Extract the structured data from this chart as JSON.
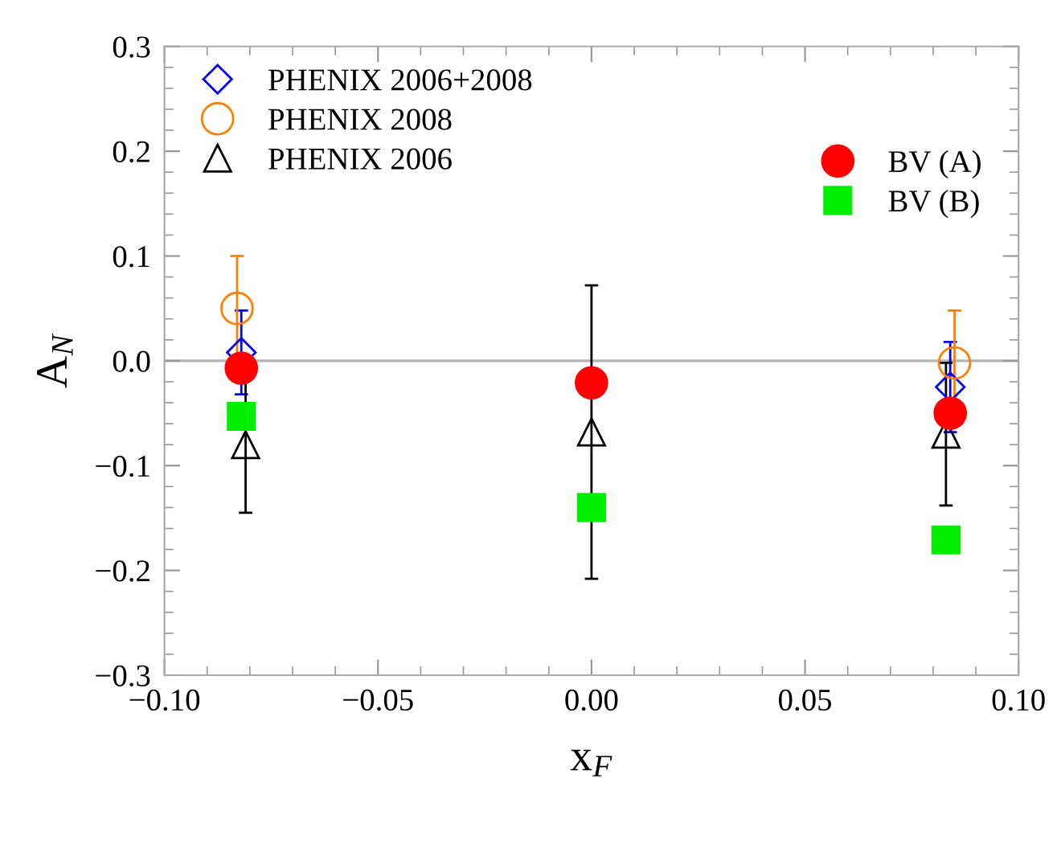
{
  "chart_data": {
    "type": "scatter",
    "xlabel": "x$_{F}$",
    "ylabel": "A$_{N}$",
    "xlim": [
      -0.1,
      0.1
    ],
    "ylim": [
      -0.3,
      0.3
    ],
    "xticks": [
      {
        "value": -0.1,
        "label": "−0.10"
      },
      {
        "value": -0.05,
        "label": "−0.05"
      },
      {
        "value": 0,
        "label": "0.00"
      },
      {
        "value": 0.05,
        "label": "0.05"
      },
      {
        "value": 0.1,
        "label": "0.10"
      }
    ],
    "yticks": [
      {
        "value": -0.3,
        "label": "−0.3"
      },
      {
        "value": -0.2,
        "label": "−0.2"
      },
      {
        "value": -0.1,
        "label": "−0.1"
      },
      {
        "value": 0,
        "label": "0.0"
      },
      {
        "value": 0.1,
        "label": "0.1"
      },
      {
        "value": 0.2,
        "label": "0.2"
      },
      {
        "value": 0.3,
        "label": "0.3"
      }
    ],
    "grid": false,
    "legend": "top",
    "ref_lines": [
      {
        "axis": "y",
        "value": 0,
        "label": null,
        "color": "#b4b4b4"
      }
    ],
    "series": [
      {
        "name": "PHENIX 2006+2008",
        "color": "#0000ff",
        "marker": "diamond",
        "x": [
          -0.082,
          0.084
        ],
        "values": [
          0.008,
          -0.025
        ],
        "errors": [
          0.04,
          0.043
        ]
      },
      {
        "name": "PHENIX 2008",
        "color": "#ff8000",
        "marker": "circle",
        "x": [
          -0.083,
          0.085
        ],
        "values": [
          0.05,
          -0.002
        ],
        "errors": [
          0.05,
          0.05
        ]
      },
      {
        "name": "PHENIX 2006",
        "color": "#000000",
        "marker": "triangle",
        "x": [
          -0.081,
          0,
          0.083
        ],
        "values": [
          -0.08,
          -0.068,
          -0.07
        ],
        "errors": [
          0.065,
          0.14,
          0.068
        ]
      },
      {
        "name": "BV (A)",
        "color": "#ff0000",
        "marker": "circle",
        "x": [
          -0.082,
          0,
          0.084
        ],
        "values": [
          -0.007,
          -0.021,
          -0.05
        ]
      },
      {
        "name": "BV (B)",
        "color": "#00ee00",
        "marker": "square",
        "x": [
          -0.082,
          0,
          0.083
        ],
        "values": [
          -0.053,
          -0.14,
          -0.171
        ]
      }
    ]
  }
}
